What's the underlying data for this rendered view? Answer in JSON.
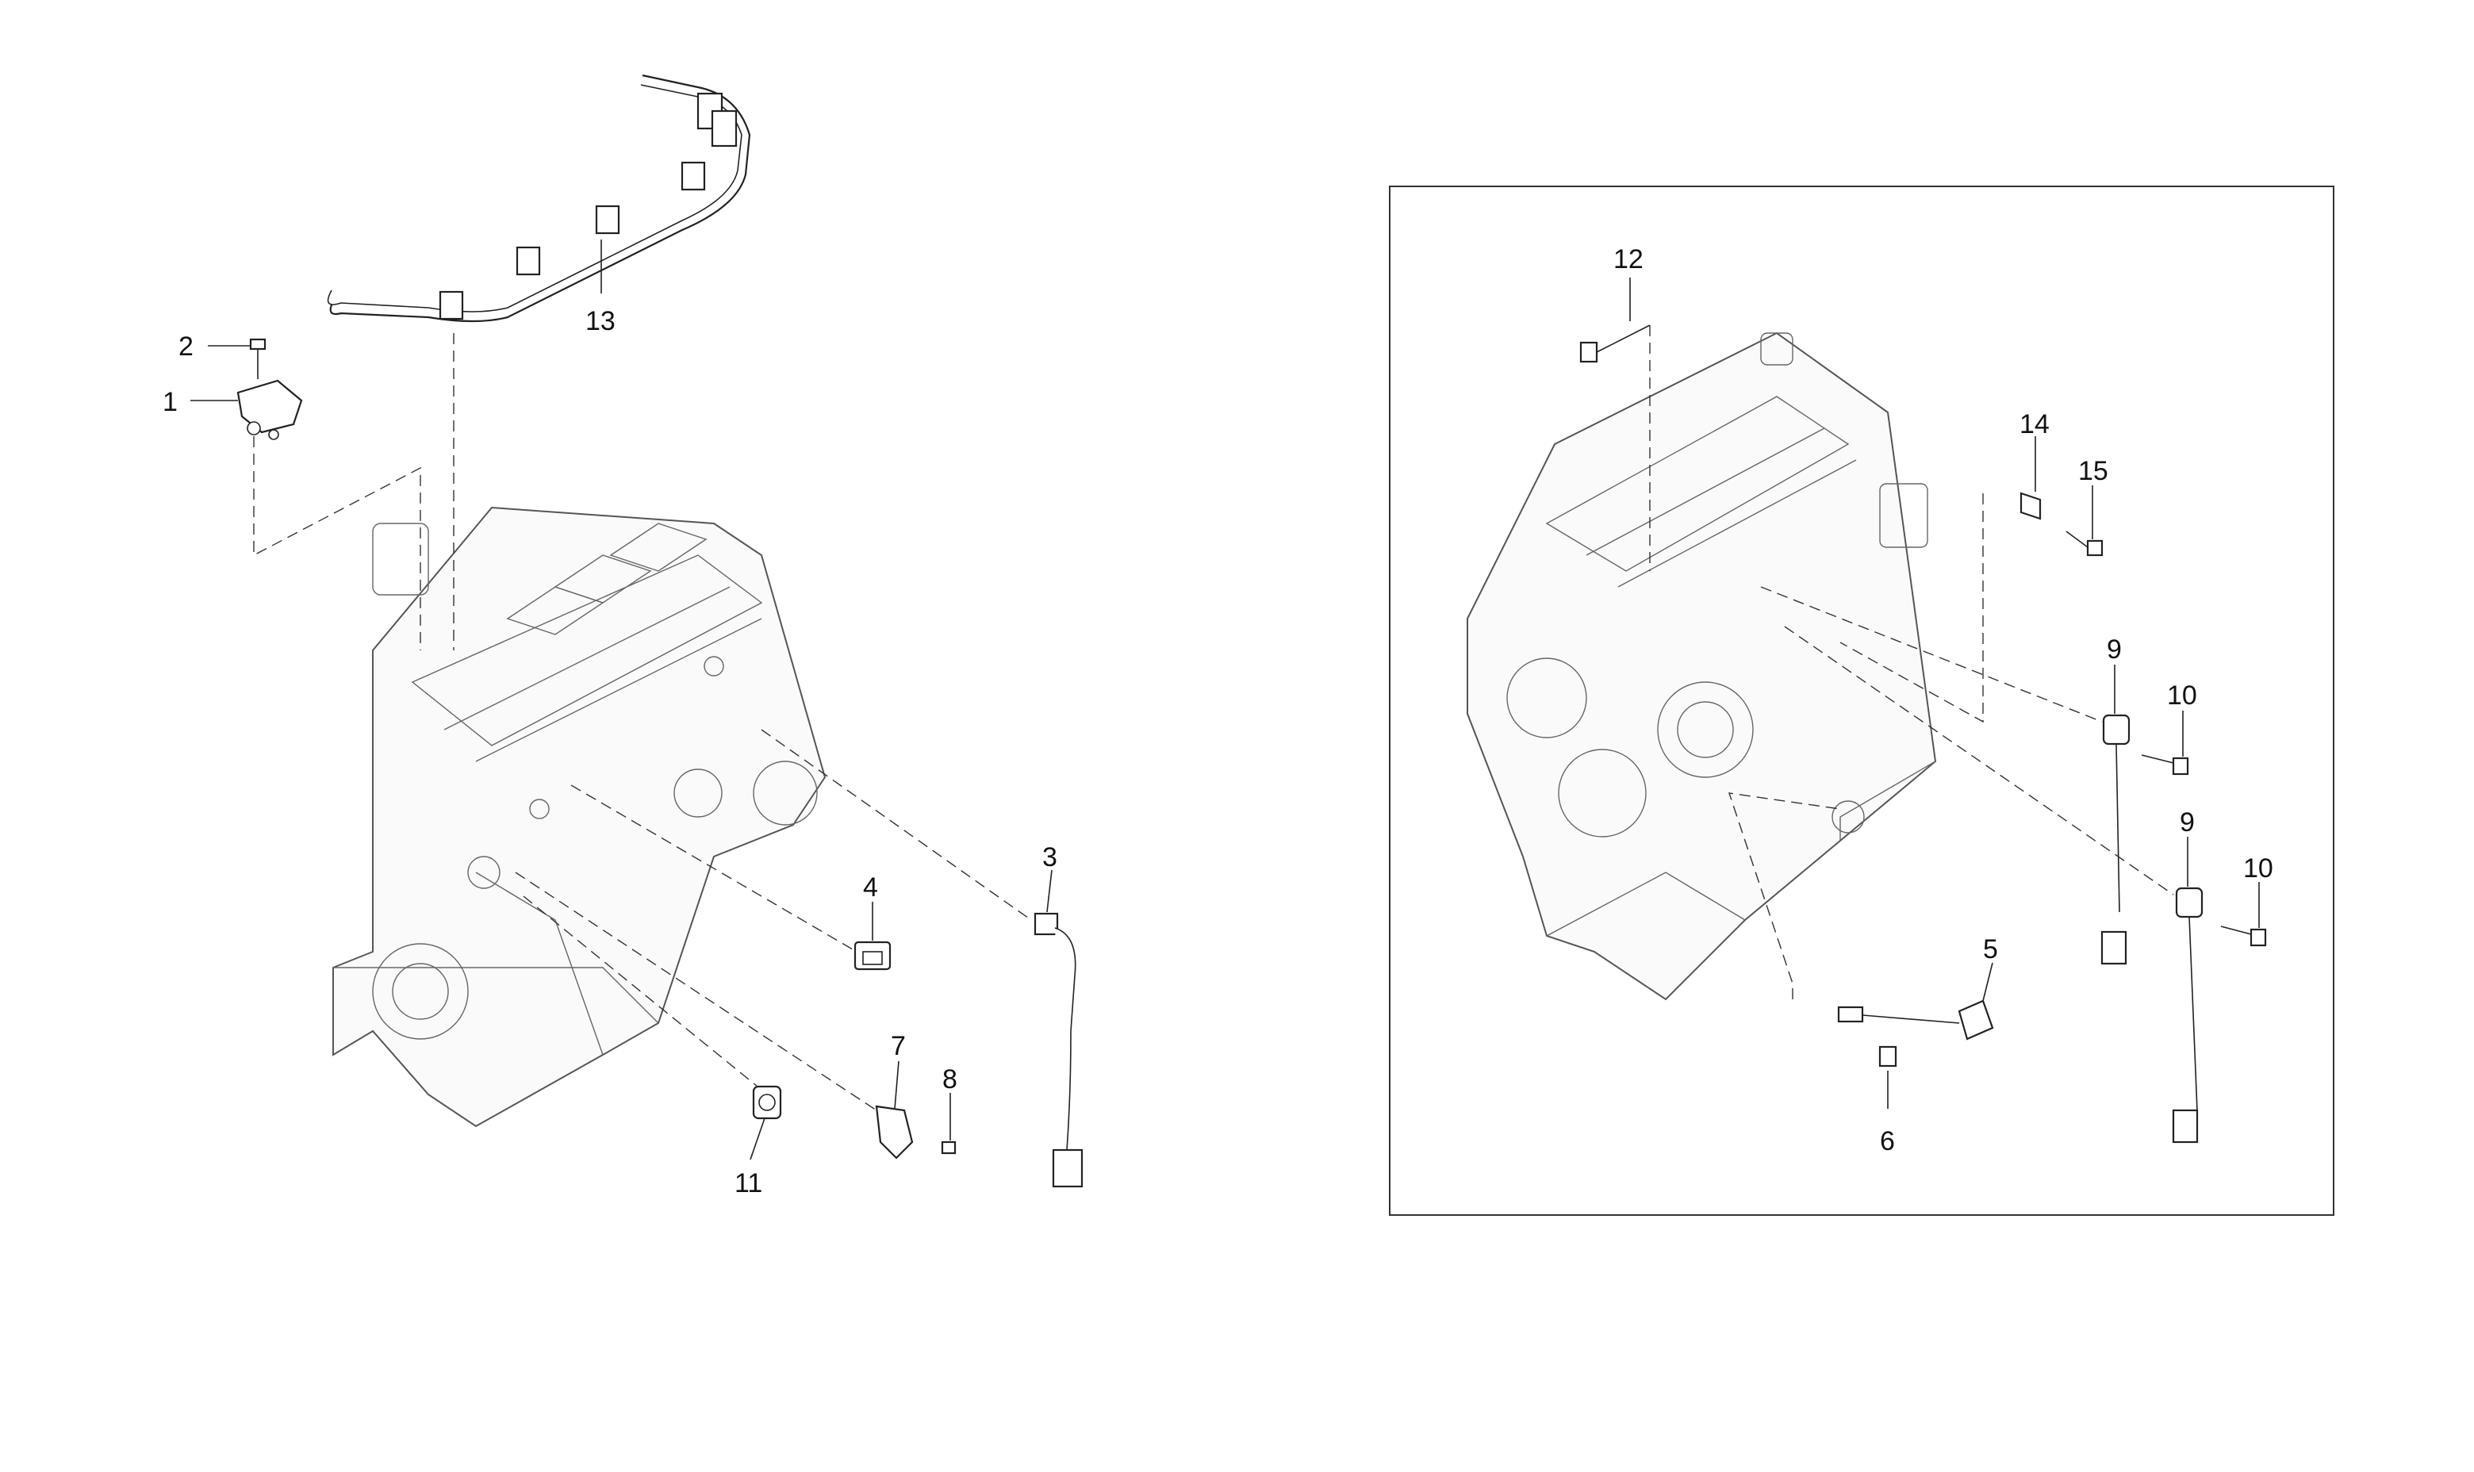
{
  "diagram": {
    "callouts": [
      "1",
      "2",
      "3",
      "4",
      "5",
      "6",
      "7",
      "8",
      "9",
      "9",
      "10",
      "10",
      "11",
      "12",
      "13",
      "14",
      "15"
    ],
    "left_view": {
      "labels": {
        "c1": "1",
        "c2": "2",
        "c3": "3",
        "c4": "4",
        "c7": "7",
        "c8": "8",
        "c11": "11",
        "c13": "13"
      }
    },
    "right_view": {
      "labels": {
        "c5": "5",
        "c6": "6",
        "c9a": "9",
        "c9b": "9",
        "c10a": "10",
        "c10b": "10",
        "c12": "12",
        "c14": "14",
        "c15": "15"
      }
    }
  }
}
